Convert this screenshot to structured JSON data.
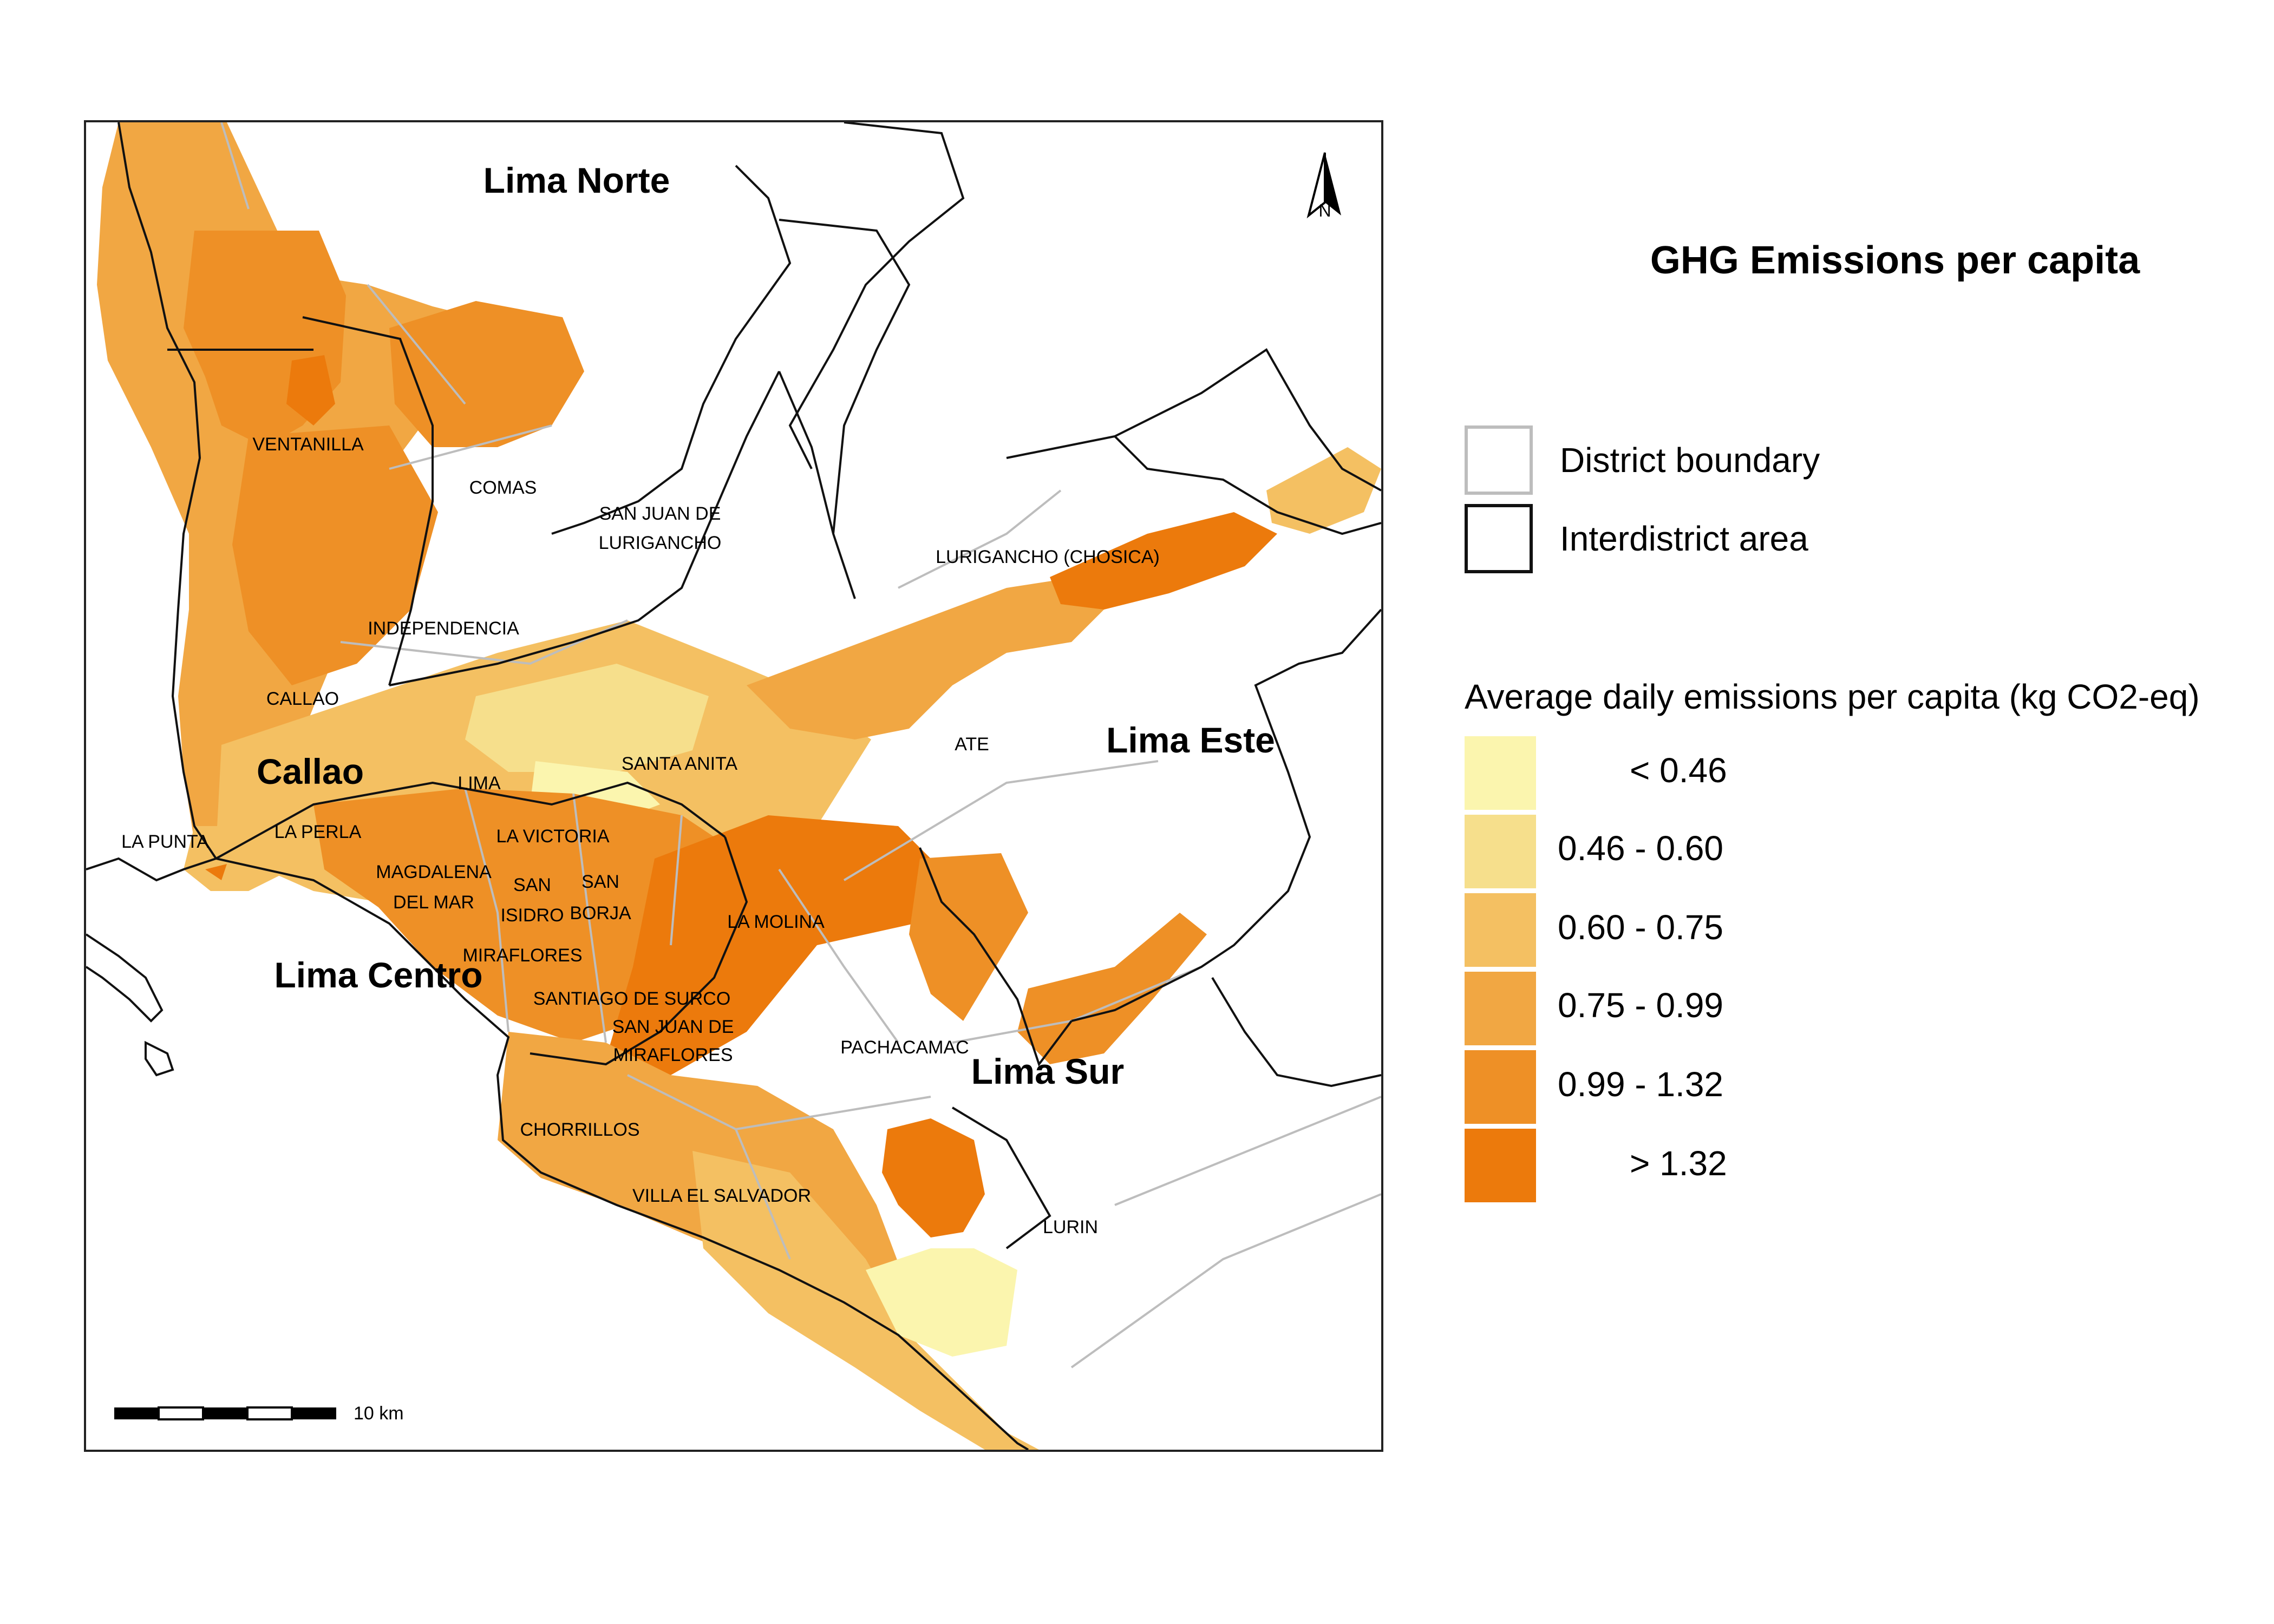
{
  "title": "GHG Emissions per capita",
  "legend": {
    "boundaries": [
      {
        "label": "District boundary",
        "color": "#bdbdbd"
      },
      {
        "label": "Interdistrict area",
        "color": "#111111"
      }
    ],
    "bins_title": "Average daily emissions per capita (kg CO2-eq)",
    "bins": [
      {
        "label": "< 0.46",
        "color": "#fbf5ae"
      },
      {
        "label": "0.46 - 0.60",
        "color": "#f6df8c"
      },
      {
        "label": "0.60 - 0.75",
        "color": "#f4c062"
      },
      {
        "label": "0.75 - 0.99",
        "color": "#f1a743"
      },
      {
        "label": "0.99 - 1.32",
        "color": "#ee9026"
      },
      {
        "label": "> 1.32",
        "color": "#ec7a0c"
      }
    ]
  },
  "map": {
    "regions": [
      "Lima Norte",
      "Callao",
      "Lima Centro",
      "Lima Este",
      "Lima Sur"
    ],
    "districts": [
      "VENTANILLA",
      "COMAS",
      "SAN JUAN DE",
      "LURIGANCHO",
      "LURIGANCHO (CHOSICA)",
      "INDEPENDENCIA",
      "CALLAO",
      "SANTA ANITA",
      "ATE",
      "LIMA",
      "LA PUNTA",
      "LA PERLA",
      "LA VICTORIA",
      "MAGDALENA",
      "DEL MAR",
      "SAN",
      "ISIDRO",
      "SAN",
      "BORJA",
      "LA MOLINA",
      "MIRAFLORES",
      "SANTIAGO DE SURCO",
      "SAN JUAN DE",
      "MIRAFLORES",
      "PACHACAMAC",
      "CHORRILLOS",
      "VILLA EL SALVADOR",
      "LURIN"
    ],
    "north_arrow": "N",
    "scale_bar": "10 km"
  }
}
